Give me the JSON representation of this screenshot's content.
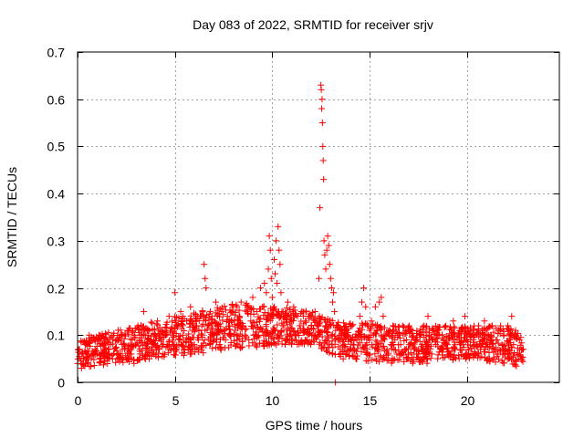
{
  "chart_data": {
    "type": "scatter",
    "title": "Day 083 of 2022, SRMTID for receiver srjv",
    "xlabel": "GPS time / hours",
    "ylabel": "SRMTID / TECUs",
    "xlim": [
      0,
      24.75
    ],
    "ylim": [
      0,
      0.7
    ],
    "xticks": [
      0,
      5,
      10,
      15,
      20
    ],
    "yticks": [
      0,
      0.1,
      0.2,
      0.3,
      0.4,
      0.5,
      0.6,
      0.7
    ],
    "xtick_labels": [
      "0",
      "5",
      "10",
      "15",
      "20"
    ],
    "ytick_labels": [
      "0",
      "0.1",
      "0.2",
      "0.3",
      "0.4",
      "0.5",
      "0.6",
      "0.7"
    ],
    "grid": true,
    "marker": "+",
    "marker_color": "#ff0000",
    "series": [
      {
        "name": "srjv",
        "points": [
          [
            0.0,
            0.04
          ],
          [
            0.1,
            0.07
          ],
          [
            0.2,
            0.03
          ],
          [
            0.3,
            0.05
          ],
          [
            0.4,
            0.08
          ],
          [
            0.5,
            0.06
          ],
          [
            0.6,
            0.1
          ],
          [
            0.7,
            0.05
          ],
          [
            0.8,
            0.09
          ],
          [
            0.9,
            0.07
          ],
          [
            1.0,
            0.06
          ],
          [
            1.1,
            0.1
          ],
          [
            1.2,
            0.05
          ],
          [
            1.3,
            0.08
          ],
          [
            1.4,
            0.07
          ],
          [
            1.5,
            0.09
          ],
          [
            1.6,
            0.06
          ],
          [
            1.7,
            0.08
          ],
          [
            1.8,
            0.05
          ],
          [
            1.9,
            0.07
          ],
          [
            2.0,
            0.09
          ],
          [
            2.1,
            0.06
          ],
          [
            2.2,
            0.1
          ],
          [
            2.3,
            0.07
          ],
          [
            2.4,
            0.08
          ],
          [
            2.5,
            0.05
          ],
          [
            2.6,
            0.11
          ],
          [
            2.7,
            0.06
          ],
          [
            2.8,
            0.09
          ],
          [
            2.9,
            0.04
          ],
          [
            3.0,
            0.08
          ],
          [
            3.1,
            0.12
          ],
          [
            3.2,
            0.07
          ],
          [
            3.3,
            0.1
          ],
          [
            3.4,
            0.15
          ],
          [
            3.5,
            0.06
          ],
          [
            3.6,
            0.09
          ],
          [
            3.7,
            0.11
          ],
          [
            3.8,
            0.07
          ],
          [
            3.9,
            0.08
          ],
          [
            4.0,
            0.1
          ],
          [
            4.1,
            0.13
          ],
          [
            4.2,
            0.07
          ],
          [
            4.3,
            0.09
          ],
          [
            4.4,
            0.06
          ],
          [
            4.5,
            0.11
          ],
          [
            4.6,
            0.08
          ],
          [
            4.7,
            0.14
          ],
          [
            4.8,
            0.07
          ],
          [
            4.9,
            0.1
          ],
          [
            5.0,
            0.19
          ],
          [
            5.1,
            0.12
          ],
          [
            5.2,
            0.08
          ],
          [
            5.3,
            0.15
          ],
          [
            5.4,
            0.1
          ],
          [
            5.5,
            0.07
          ],
          [
            5.6,
            0.13
          ],
          [
            5.7,
            0.09
          ],
          [
            5.8,
            0.16
          ],
          [
            5.9,
            0.11
          ],
          [
            6.0,
            0.08
          ],
          [
            6.1,
            0.12
          ],
          [
            6.2,
            0.09
          ],
          [
            6.3,
            0.14
          ],
          [
            6.4,
            0.1
          ],
          [
            6.5,
            0.25
          ],
          [
            6.55,
            0.22
          ],
          [
            6.6,
            0.2
          ],
          [
            6.7,
            0.12
          ],
          [
            6.8,
            0.08
          ],
          [
            6.9,
            0.14
          ],
          [
            7.0,
            0.1
          ],
          [
            7.1,
            0.17
          ],
          [
            7.2,
            0.12
          ],
          [
            7.3,
            0.08
          ],
          [
            7.4,
            0.15
          ],
          [
            7.5,
            0.11
          ],
          [
            7.6,
            0.09
          ],
          [
            7.7,
            0.14
          ],
          [
            7.8,
            0.1
          ],
          [
            7.9,
            0.13
          ],
          [
            8.0,
            0.16
          ],
          [
            8.1,
            0.11
          ],
          [
            8.2,
            0.08
          ],
          [
            8.3,
            0.14
          ],
          [
            8.4,
            0.17
          ],
          [
            8.5,
            0.12
          ],
          [
            8.6,
            0.1
          ],
          [
            8.7,
            0.15
          ],
          [
            8.8,
            0.09
          ],
          [
            8.9,
            0.13
          ],
          [
            9.0,
            0.18
          ],
          [
            9.1,
            0.12
          ],
          [
            9.2,
            0.15
          ],
          [
            9.3,
            0.1
          ],
          [
            9.4,
            0.2
          ],
          [
            9.5,
            0.16
          ],
          [
            9.6,
            0.21
          ],
          [
            9.7,
            0.19
          ],
          [
            9.8,
            0.24
          ],
          [
            9.85,
            0.31
          ],
          [
            9.9,
            0.28
          ],
          [
            9.95,
            0.22
          ],
          [
            10.0,
            0.18
          ],
          [
            10.05,
            0.14
          ],
          [
            10.1,
            0.26
          ],
          [
            10.15,
            0.23
          ],
          [
            10.2,
            0.3
          ],
          [
            10.25,
            0.21
          ],
          [
            10.3,
            0.33
          ],
          [
            10.35,
            0.28
          ],
          [
            10.4,
            0.25
          ],
          [
            10.45,
            0.19
          ],
          [
            10.5,
            0.15
          ],
          [
            10.6,
            0.12
          ],
          [
            10.7,
            0.14
          ],
          [
            10.8,
            0.17
          ],
          [
            10.9,
            0.11
          ],
          [
            11.0,
            0.13
          ],
          [
            11.1,
            0.16
          ],
          [
            11.2,
            0.1
          ],
          [
            11.3,
            0.14
          ],
          [
            11.4,
            0.12
          ],
          [
            11.5,
            0.15
          ],
          [
            11.6,
            0.11
          ],
          [
            11.7,
            0.13
          ],
          [
            11.8,
            0.09
          ],
          [
            11.9,
            0.14
          ],
          [
            12.0,
            0.12
          ],
          [
            12.1,
            0.1
          ],
          [
            12.2,
            0.15
          ],
          [
            12.3,
            0.13
          ],
          [
            12.4,
            0.22
          ],
          [
            12.45,
            0.37
          ],
          [
            12.5,
            0.63
          ],
          [
            12.52,
            0.62
          ],
          [
            12.54,
            0.58
          ],
          [
            12.56,
            0.6
          ],
          [
            12.58,
            0.55
          ],
          [
            12.6,
            0.5
          ],
          [
            12.62,
            0.47
          ],
          [
            12.64,
            0.43
          ],
          [
            12.66,
            0.3
          ],
          [
            12.7,
            0.27
          ],
          [
            12.75,
            0.24
          ],
          [
            12.8,
            0.28
          ],
          [
            12.85,
            0.31
          ],
          [
            12.9,
            0.29
          ],
          [
            12.95,
            0.25
          ],
          [
            13.0,
            0.22
          ],
          [
            13.05,
            0.2
          ],
          [
            13.1,
            0.17
          ],
          [
            13.15,
            0.19
          ],
          [
            13.2,
            0.15
          ],
          [
            13.25,
            0.0
          ],
          [
            13.3,
            0.12
          ],
          [
            13.4,
            0.09
          ],
          [
            13.5,
            0.07
          ],
          [
            13.6,
            0.11
          ],
          [
            13.7,
            0.08
          ],
          [
            13.8,
            0.06
          ],
          [
            13.9,
            0.1
          ],
          [
            14.0,
            0.07
          ],
          [
            14.1,
            0.12
          ],
          [
            14.2,
            0.08
          ],
          [
            14.3,
            0.05
          ],
          [
            14.4,
            0.1
          ],
          [
            14.5,
            0.14
          ],
          [
            14.6,
            0.17
          ],
          [
            14.7,
            0.2
          ],
          [
            14.8,
            0.16
          ],
          [
            14.9,
            0.12
          ],
          [
            15.0,
            0.09
          ],
          [
            15.1,
            0.13
          ],
          [
            15.2,
            0.1
          ],
          [
            15.3,
            0.16
          ],
          [
            15.4,
            0.12
          ],
          [
            15.5,
            0.17
          ],
          [
            15.6,
            0.18
          ],
          [
            15.7,
            0.14
          ],
          [
            15.8,
            0.1
          ],
          [
            15.9,
            0.07
          ],
          [
            16.0,
            0.11
          ],
          [
            16.1,
            0.08
          ],
          [
            16.2,
            0.12
          ],
          [
            16.3,
            0.09
          ],
          [
            16.4,
            0.06
          ],
          [
            16.5,
            0.1
          ],
          [
            16.6,
            0.08
          ],
          [
            16.7,
            0.12
          ],
          [
            16.8,
            0.07
          ],
          [
            16.9,
            0.09
          ],
          [
            17.0,
            0.05
          ],
          [
            17.1,
            0.08
          ],
          [
            17.2,
            0.11
          ],
          [
            17.3,
            0.07
          ],
          [
            17.4,
            0.09
          ],
          [
            17.5,
            0.06
          ],
          [
            17.6,
            0.1
          ],
          [
            17.7,
            0.08
          ],
          [
            17.8,
            0.12
          ],
          [
            17.9,
            0.07
          ],
          [
            18.0,
            0.14
          ],
          [
            18.1,
            0.09
          ],
          [
            18.2,
            0.06
          ],
          [
            18.3,
            0.11
          ],
          [
            18.4,
            0.08
          ],
          [
            18.5,
            0.05
          ],
          [
            18.6,
            0.1
          ],
          [
            18.7,
            0.07
          ],
          [
            18.8,
            0.09
          ],
          [
            18.9,
            0.12
          ],
          [
            19.0,
            0.08
          ],
          [
            19.1,
            0.06
          ],
          [
            19.2,
            0.1
          ],
          [
            19.3,
            0.13
          ],
          [
            19.4,
            0.07
          ],
          [
            19.5,
            0.09
          ],
          [
            19.6,
            0.05
          ],
          [
            19.7,
            0.11
          ],
          [
            19.8,
            0.08
          ],
          [
            19.9,
            0.14
          ],
          [
            20.0,
            0.09
          ],
          [
            20.1,
            0.07
          ],
          [
            20.2,
            0.11
          ],
          [
            20.3,
            0.06
          ],
          [
            20.4,
            0.1
          ],
          [
            20.5,
            0.08
          ],
          [
            20.6,
            0.12
          ],
          [
            20.7,
            0.07
          ],
          [
            20.8,
            0.09
          ],
          [
            20.9,
            0.13
          ],
          [
            21.0,
            0.08
          ],
          [
            21.1,
            0.05
          ],
          [
            21.2,
            0.1
          ],
          [
            21.3,
            0.12
          ],
          [
            21.4,
            0.07
          ],
          [
            21.5,
            0.09
          ],
          [
            21.6,
            0.06
          ],
          [
            21.7,
            0.11
          ],
          [
            21.8,
            0.08
          ],
          [
            21.9,
            0.1
          ],
          [
            22.0,
            0.07
          ],
          [
            22.1,
            0.12
          ],
          [
            22.2,
            0.09
          ],
          [
            22.3,
            0.14
          ],
          [
            22.4,
            0.08
          ],
          [
            22.5,
            0.11
          ],
          [
            22.6,
            0.06
          ],
          [
            22.7,
            0.09
          ],
          [
            22.8,
            0.05
          ],
          [
            22.9,
            0.07
          ]
        ]
      }
    ],
    "background_band": {
      "description": "dense scatter band",
      "segments": [
        [
          0.0,
          0.03,
          0.09
        ],
        [
          2.0,
          0.04,
          0.11
        ],
        [
          4.0,
          0.05,
          0.13
        ],
        [
          6.0,
          0.06,
          0.15
        ],
        [
          8.0,
          0.07,
          0.17
        ],
        [
          10.5,
          0.08,
          0.16
        ],
        [
          12.0,
          0.08,
          0.15
        ],
        [
          13.5,
          0.05,
          0.13
        ],
        [
          16.0,
          0.04,
          0.12
        ],
        [
          18.0,
          0.04,
          0.12
        ],
        [
          20.0,
          0.05,
          0.12
        ],
        [
          22.0,
          0.04,
          0.12
        ],
        [
          22.9,
          0.03,
          0.1
        ]
      ]
    }
  }
}
